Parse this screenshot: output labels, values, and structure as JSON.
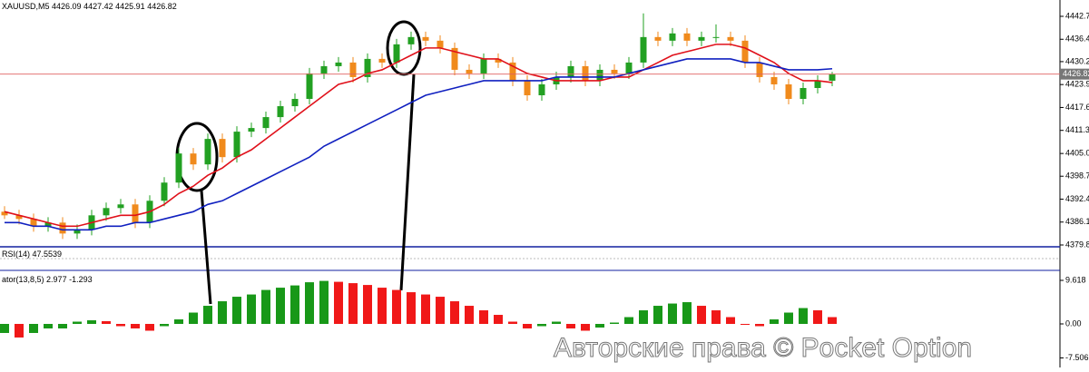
{
  "header": {
    "symbol": "XAUUSD,M5",
    "ohlc": [
      4426.09,
      4427.42,
      4425.91,
      4426.82
    ]
  },
  "price_axis": {
    "ylim": [
      4379.85,
      4446
    ],
    "ticks": [
      {
        "value": 4442.7,
        "label": "4442.70"
      },
      {
        "value": 4436.4,
        "label": "4436.40"
      },
      {
        "value": 4430.25,
        "label": "4430.25"
      },
      {
        "value": 4423.95,
        "label": "4423.95"
      },
      {
        "value": 4417.65,
        "label": "4417.65"
      },
      {
        "value": 4411.35,
        "label": "4411.35"
      },
      {
        "value": 4405,
        "label": "4405.00"
      },
      {
        "value": 4398.75,
        "label": "4398.75"
      },
      {
        "value": 4392.45,
        "label": "4392.45"
      },
      {
        "value": 4386.15,
        "label": "4386.15"
      },
      {
        "value": 4379.85,
        "label": "4379.85"
      }
    ],
    "current_price": 4426.82,
    "up_color": "#22a022",
    "down_color": "#f08a1c"
  },
  "candles": [
    [
      4389,
      4390.5,
      4387,
      4388
    ],
    [
      4388,
      4389.5,
      4385.5,
      4387
    ],
    [
      4387,
      4388.5,
      4383.5,
      4385
    ],
    [
      4385,
      4387.5,
      4383.5,
      4386
    ],
    [
      4386,
      4387.5,
      4381.5,
      4383
    ],
    [
      4383,
      4385.5,
      4381.5,
      4384
    ],
    [
      4384,
      4389.5,
      4382.5,
      4388
    ],
    [
      4388,
      4391.5,
      4386.5,
      4390
    ],
    [
      4390,
      4392.5,
      4388.5,
      4391
    ],
    [
      4391,
      4392.5,
      4384.5,
      4386
    ],
    [
      4386,
      4393.5,
      4384.5,
      4392
    ],
    [
      4392,
      4398.5,
      4390.5,
      4397
    ],
    [
      4397,
      4406.5,
      4395.5,
      4405
    ],
    [
      4405,
      4406.5,
      4400.5,
      4402
    ],
    [
      4402,
      4410.5,
      4400.5,
      4409
    ],
    [
      4409,
      4410.5,
      4402.5,
      4404
    ],
    [
      4404,
      4412.5,
      4402.5,
      4411
    ],
    [
      4411,
      4413.5,
      4409.5,
      4412
    ],
    [
      4412,
      4416.5,
      4410.5,
      4415
    ],
    [
      4415,
      4419.5,
      4413.5,
      4418
    ],
    [
      4418,
      4421.5,
      4416.5,
      4420
    ],
    [
      4420,
      4428.5,
      4418.5,
      4427
    ],
    [
      4427,
      4430.5,
      4425.5,
      4429
    ],
    [
      4429,
      4431.5,
      4427.5,
      4430
    ],
    [
      4430,
      4431.5,
      4424.5,
      4426
    ],
    [
      4426,
      4432.5,
      4424.5,
      4431
    ],
    [
      4431,
      4432.5,
      4428.5,
      4430
    ],
    [
      4430,
      4436.5,
      4428.5,
      4435
    ],
    [
      4435,
      4438.5,
      4433.5,
      4437
    ],
    [
      4437,
      4438.5,
      4434.5,
      4436
    ],
    [
      4436,
      4437.5,
      4432.5,
      4434
    ],
    [
      4434,
      4435.5,
      4426.5,
      4428
    ],
    [
      4428,
      4429.5,
      4425.5,
      4427
    ],
    [
      4427,
      4432.5,
      4425.5,
      4431
    ],
    [
      4431,
      4432.5,
      4428.5,
      4430
    ],
    [
      4430,
      4431.5,
      4423.5,
      4425
    ],
    [
      4425,
      4426.5,
      4419.5,
      4421
    ],
    [
      4421,
      4425.5,
      4419.5,
      4424
    ],
    [
      4424,
      4427.5,
      4422.5,
      4426
    ],
    [
      4426,
      4430.5,
      4424.5,
      4429
    ],
    [
      4429,
      4430.5,
      4423.5,
      4425
    ],
    [
      4425,
      4429.5,
      4423.5,
      4428
    ],
    [
      4428,
      4429.5,
      4425.5,
      4427
    ],
    [
      4427,
      4431.5,
      4425.5,
      4430
    ],
    [
      4430,
      4443.5,
      4428.5,
      4437
    ],
    [
      4437,
      4438.5,
      4434.5,
      4436
    ],
    [
      4436,
      4439.5,
      4434.5,
      4438
    ],
    [
      4438,
      4439.5,
      4434.5,
      4436
    ],
    [
      4436,
      4438.5,
      4434.5,
      4437
    ],
    [
      4437,
      4440.5,
      4435.5,
      4437
    ],
    [
      4437,
      4438.5,
      4434.5,
      4436
    ],
    [
      4436,
      4437.5,
      4428.5,
      4430
    ],
    [
      4430,
      4431.5,
      4424.5,
      4426
    ],
    [
      4426,
      4427.5,
      4422.5,
      4424
    ],
    [
      4424,
      4425.5,
      4418.5,
      4420
    ],
    [
      4420,
      4424.5,
      4418.5,
      4423
    ],
    [
      4423,
      4426.5,
      4421.5,
      4425
    ],
    [
      4425,
      4427.42,
      4423.5,
      4426.82
    ]
  ],
  "ma_fast": {
    "color": "#e0101a",
    "values": [
      4389,
      4388,
      4387,
      4386,
      4385,
      4385,
      4386,
      4387,
      4388,
      4388,
      4389,
      4391,
      4394,
      4396,
      4399,
      4401,
      4404,
      4406,
      4409,
      4412,
      4415,
      4418,
      4421,
      4424,
      4425,
      4427,
      4428,
      4430,
      4432,
      4434,
      4434,
      4433,
      4432,
      4431,
      4431,
      4429,
      4427,
      4426,
      4425,
      4425,
      4425,
      4425,
      4426,
      4426,
      4428,
      4430,
      4432,
      4433,
      4434,
      4435,
      4435,
      4434,
      4432,
      4430,
      4427,
      4425,
      4425,
      4424.5
    ]
  },
  "ma_slow": {
    "color": "#1020c0",
    "values": [
      4386,
      4386,
      4385,
      4385,
      4384,
      4384,
      4384,
      4385,
      4385,
      4386,
      4386,
      4387,
      4388,
      4389,
      4391,
      4392,
      4394,
      4396,
      4398,
      4400,
      4402,
      4404,
      4407,
      4409,
      4411,
      4413,
      4415,
      4417,
      4419,
      4421,
      4422,
      4423,
      4424,
      4425,
      4425,
      4425,
      4425,
      4425,
      4426,
      4426,
      4426,
      4426,
      4426,
      4427,
      4428,
      4429,
      4430,
      4431,
      4431,
      4431,
      4431,
      4430,
      4430,
      4429,
      4428,
      4428,
      4428,
      4428.3
    ]
  },
  "rsi": {
    "label": "RSI(14)",
    "value": 47.5539
  },
  "oscillator": {
    "label": "ator(13,8,5)",
    "readings": [
      2.977,
      -1.293
    ],
    "ticks": [
      9.618,
      {
        "value": 0,
        "label": "0.00"
      },
      -7.506
    ],
    "up_color": "#189818",
    "down_color": "#f01818",
    "values": [
      -2,
      -3,
      -2,
      -1,
      -1,
      0.5,
      0.8,
      0.6,
      -0.5,
      -1,
      -1.5,
      -0.5,
      1,
      2.5,
      4,
      5,
      6,
      6.5,
      7.5,
      8,
      8.5,
      9.2,
      9.5,
      9.3,
      9,
      8.6,
      8,
      7.5,
      7,
      6.5,
      6,
      5,
      4,
      3,
      2,
      0.5,
      -1,
      -0.5,
      0.5,
      -1,
      -1.5,
      -0.8,
      0.3,
      1.5,
      3,
      4,
      4.5,
      4.8,
      4,
      3,
      1.5,
      0,
      -0.5,
      1,
      2.5,
      3.5,
      3,
      1.5
    ]
  },
  "watermark": "Авторские права © Pocket Option"
}
